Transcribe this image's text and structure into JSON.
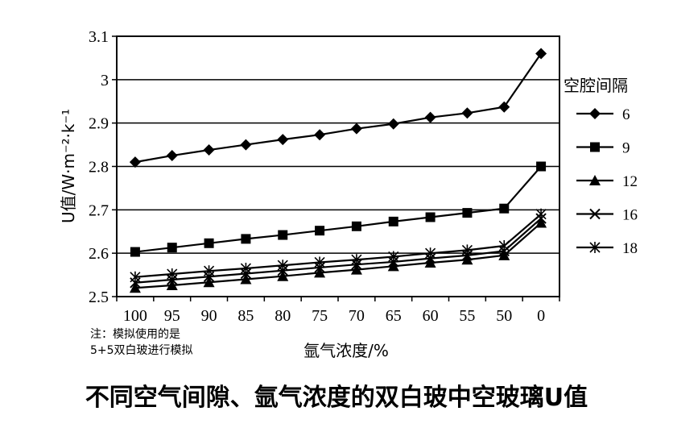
{
  "chart_data": {
    "type": "line",
    "ylabel": "U值/W·m⁻²·k⁻¹",
    "xlabel": "氩气浓度/%",
    "categories": [
      "100",
      "95",
      "90",
      "85",
      "80",
      "75",
      "70",
      "65",
      "60",
      "55",
      "50",
      "0"
    ],
    "ylim": [
      2.5,
      3.1
    ],
    "yticks": [
      "2.5",
      "2.6",
      "2.7",
      "2.8",
      "2.9",
      "3",
      "3.1"
    ],
    "grid": "horizontal",
    "legend_title": "空腔间隔",
    "legend_position": "right",
    "series": [
      {
        "name": "6",
        "marker": "diamond",
        "values": [
          2.81,
          2.825,
          2.838,
          2.85,
          2.862,
          2.873,
          2.887,
          2.898,
          2.913,
          2.923,
          2.937,
          3.06
        ]
      },
      {
        "name": "9",
        "marker": "square",
        "values": [
          2.603,
          2.613,
          2.623,
          2.633,
          2.642,
          2.652,
          2.662,
          2.673,
          2.683,
          2.693,
          2.703,
          2.8
        ]
      },
      {
        "name": "12",
        "marker": "triangle",
        "values": [
          2.52,
          2.526,
          2.533,
          2.54,
          2.547,
          2.555,
          2.562,
          2.57,
          2.578,
          2.585,
          2.595,
          2.67
        ]
      },
      {
        "name": "16",
        "marker": "x",
        "values": [
          2.532,
          2.539,
          2.546,
          2.553,
          2.56,
          2.567,
          2.574,
          2.58,
          2.588,
          2.595,
          2.605,
          2.68
        ]
      },
      {
        "name": "18",
        "marker": "asterisk",
        "values": [
          2.545,
          2.552,
          2.559,
          2.565,
          2.572,
          2.579,
          2.585,
          2.592,
          2.6,
          2.607,
          2.617,
          2.69
        ]
      }
    ]
  },
  "note": {
    "line1": "注：模拟使用的是",
    "line2": "5+5双白玻进行模拟"
  },
  "footer_title": "不同空气间隙、氩气浓度的双白玻中空玻璃U值"
}
